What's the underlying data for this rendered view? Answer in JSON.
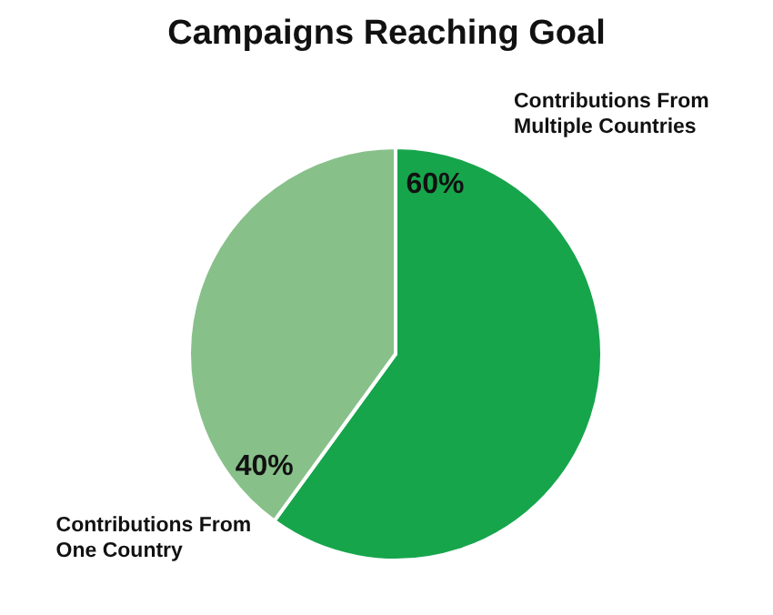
{
  "chart_data": {
    "type": "pie",
    "title": "Campaigns Reaching Goal",
    "categories": [
      "Contributions From Multiple Countries",
      "Contributions From One Country"
    ],
    "values": [
      60,
      40
    ],
    "colors": [
      "#17a54c",
      "#88c08a"
    ],
    "value_labels": [
      "60%",
      "40%"
    ],
    "legend": false
  }
}
